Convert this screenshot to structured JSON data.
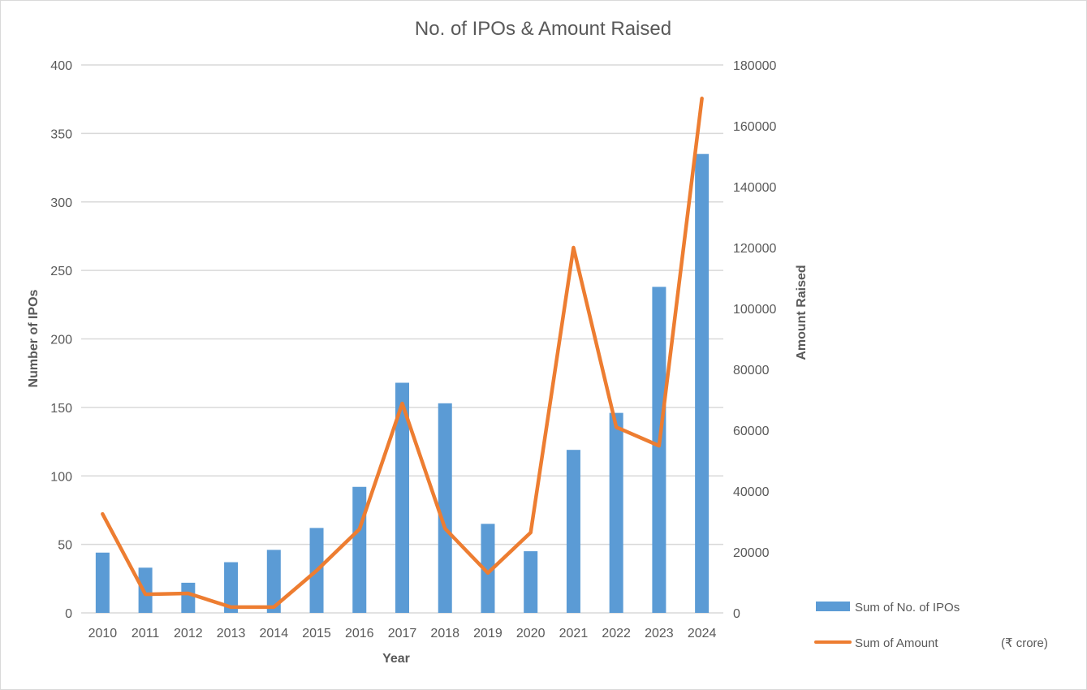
{
  "chart_data": {
    "type": "bar+line",
    "title": "No. of IPOs & Amount Raised",
    "xlabel": "Year",
    "ylabel": "Number of IPOs",
    "y2label": "Amount Raised",
    "unit_note": "(₹ crore)",
    "categories": [
      "2010",
      "2011",
      "2012",
      "2013",
      "2014",
      "2015",
      "2016",
      "2017",
      "2018",
      "2019",
      "2020",
      "2021",
      "2022",
      "2023",
      "2024"
    ],
    "ylim": [
      0,
      400
    ],
    "yticks": [
      0,
      50,
      100,
      150,
      200,
      250,
      300,
      350,
      400
    ],
    "y2lim": [
      0,
      180000
    ],
    "y2ticks": [
      0,
      20000,
      40000,
      60000,
      80000,
      100000,
      120000,
      140000,
      160000,
      180000
    ],
    "grid": true,
    "legend_position": "bottom-right",
    "series": [
      {
        "name": "Sum of No. of IPOs",
        "type": "bar",
        "axis": "left",
        "color": "#5b9bd5",
        "values": [
          44,
          33,
          22,
          37,
          46,
          62,
          92,
          168,
          153,
          65,
          45,
          119,
          146,
          238,
          335
        ]
      },
      {
        "name": "Sum of Amount",
        "type": "line",
        "axis": "right",
        "color": "#ed7d31",
        "values": [
          32500,
          6100,
          6400,
          1900,
          1900,
          13900,
          27500,
          68800,
          27700,
          13100,
          26400,
          120000,
          61000,
          54900,
          169000
        ]
      }
    ]
  }
}
